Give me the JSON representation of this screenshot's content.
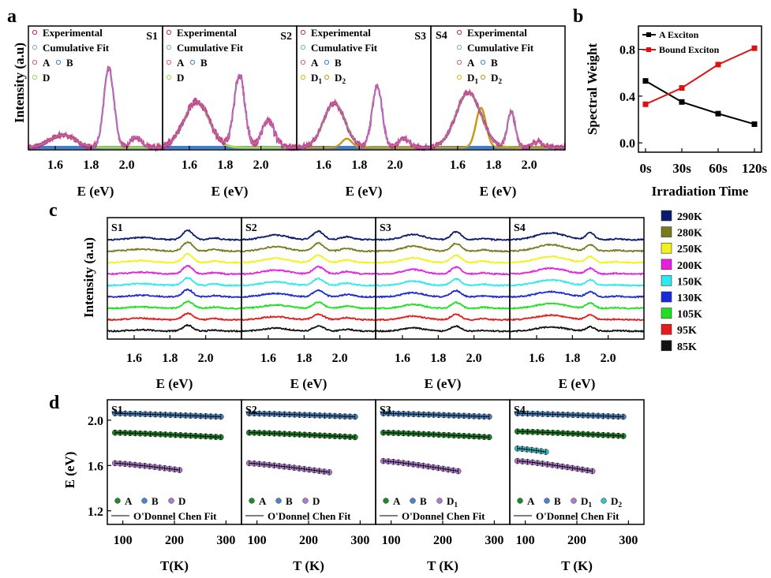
{
  "panel_labels": {
    "a": "a",
    "b": "b",
    "c": "c",
    "d": "d"
  },
  "shared": {
    "intensity_label": "Intensity (a.u)",
    "energy_label": "E (eV)",
    "temperature_label": "T(K)",
    "temperature_label_alt": "T (K)",
    "energy_ticks": [
      "1.6",
      "1.8",
      "2.0"
    ],
    "energy_values": [
      1.6,
      1.8,
      2.0
    ],
    "samples": [
      "S1",
      "S2",
      "S3",
      "S4"
    ]
  },
  "colors": {
    "experimental": "#c8266e",
    "fit": "#9b7fd4",
    "peak_a": "#e8587a",
    "peak_b": "#3a7fd6",
    "peak_d": "#a6d64a",
    "peak_d2": "#c89a1a",
    "a_exciton": "#000000",
    "bound_exciton": "#e01010",
    "green_marker": "#1f8a2a",
    "blue_marker": "#4a86c8",
    "purple_marker": "#b07ad0",
    "cyan_marker": "#3cc0c8"
  },
  "panel_a": {
    "xlim": [
      1.45,
      2.2
    ],
    "panels": [
      {
        "sample": "S1",
        "legend": [
          {
            "label": "Experimental",
            "color": "#c8266e"
          },
          {
            "label": "Cumulative Fit",
            "color": "#7fa8e0"
          },
          {
            "label": "A",
            "color": "#e8587a"
          },
          {
            "label": "B",
            "color": "#3a7fd6"
          },
          {
            "label": "D",
            "color": "#a6d64a"
          }
        ],
        "peaks": [
          {
            "c": 1.64,
            "w": 0.07,
            "h": 0.14
          },
          {
            "c": 1.9,
            "w": 0.028,
            "h": 0.9
          },
          {
            "c": 2.05,
            "w": 0.03,
            "h": 0.12
          }
        ]
      },
      {
        "sample": "S2",
        "legend": [
          {
            "label": "Experimental",
            "color": "#c8266e"
          },
          {
            "label": "Cumulative Fit",
            "color": "#7fa8e0"
          },
          {
            "label": "A",
            "color": "#e8587a"
          },
          {
            "label": "B",
            "color": "#3a7fd6"
          },
          {
            "label": "D",
            "color": "#a6d64a"
          }
        ],
        "peaks": [
          {
            "c": 1.64,
            "w": 0.07,
            "h": 0.52
          },
          {
            "c": 1.88,
            "w": 0.03,
            "h": 0.82
          },
          {
            "c": 2.04,
            "w": 0.035,
            "h": 0.3
          }
        ]
      },
      {
        "sample": "S3",
        "legend": [
          {
            "label": "Experimental",
            "color": "#c8266e"
          },
          {
            "label": "Cumulative Fit",
            "color": "#7fa8e0"
          },
          {
            "label": "A",
            "color": "#e8587a"
          },
          {
            "label": "B",
            "color": "#3a7fd6"
          },
          {
            "label": "D1",
            "color": "#e0c000"
          },
          {
            "label": "D2",
            "color": "#c89a1a"
          }
        ],
        "peaks": [
          {
            "c": 1.66,
            "w": 0.06,
            "h": 0.5
          },
          {
            "c": 1.9,
            "w": 0.028,
            "h": 0.7
          },
          {
            "c": 2.05,
            "w": 0.03,
            "h": 0.1
          }
        ]
      },
      {
        "sample": "S4",
        "legend": [
          {
            "label": "Experimental",
            "color": "#c8266e"
          },
          {
            "label": "Cumulative Fit",
            "color": "#7fa8e0"
          },
          {
            "label": "A",
            "color": "#e8587a"
          },
          {
            "label": "B",
            "color": "#3a7fd6"
          },
          {
            "label": "D1",
            "color": "#e0c000"
          },
          {
            "label": "D2",
            "color": "#c89a1a"
          }
        ],
        "peaks": [
          {
            "c": 1.66,
            "w": 0.07,
            "h": 0.62
          },
          {
            "c": 1.9,
            "w": 0.022,
            "h": 0.4
          },
          {
            "c": 2.05,
            "w": 0.03,
            "h": 0.06
          }
        ]
      }
    ]
  },
  "chart_data": {
    "type": "line",
    "title": "",
    "xlabel": "Irradiation Time",
    "ylabel": "Spectral Weight",
    "categories": [
      "0s",
      "30s",
      "60s",
      "120s"
    ],
    "series": [
      {
        "name": "A Exciton",
        "color": "#000000",
        "values": [
          0.53,
          0.35,
          0.25,
          0.16
        ]
      },
      {
        "name": "Bound Exciton",
        "color": "#e01010",
        "values": [
          0.33,
          0.47,
          0.67,
          0.81
        ]
      }
    ],
    "ylim": [
      -0.08,
      1.0
    ],
    "yticks": [
      "0.0",
      "0.4",
      "0.8"
    ],
    "ytick_values": [
      0.0,
      0.4,
      0.8
    ]
  },
  "panel_c": {
    "temperatures": [
      {
        "label": "290K",
        "color": "#0a1a6e"
      },
      {
        "label": "280K",
        "color": "#7a7a1a"
      },
      {
        "label": "250K",
        "color": "#f2f21a"
      },
      {
        "label": "200K",
        "color": "#e81ee0"
      },
      {
        "label": "150K",
        "color": "#2ee8ee"
      },
      {
        "label": "130K",
        "color": "#1a2ad6"
      },
      {
        "label": "105K",
        "color": "#1ee01e"
      },
      {
        "label": "95K",
        "color": "#e81a1a"
      },
      {
        "label": "85K",
        "color": "#111111"
      }
    ]
  },
  "panel_d": {
    "yticks": [
      "1.2",
      "1.6",
      "2.0"
    ],
    "ytick_values": [
      1.2,
      1.6,
      2.0
    ],
    "xticks": [
      "100",
      "200",
      "300"
    ],
    "xtick_values": [
      100,
      200,
      300
    ],
    "ylim": [
      1.08,
      2.18
    ],
    "xlim": [
      70,
      330
    ],
    "fit_label": "O'Donnel Chen Fit",
    "panels": [
      {
        "sample": "S1",
        "legend": [
          {
            "label": "A",
            "color": "#1f8a2a"
          },
          {
            "label": "B",
            "color": "#4a86c8"
          },
          {
            "label": "D",
            "color": "#b07ad0"
          }
        ],
        "series": [
          {
            "name": "B",
            "color": "#4a86c8",
            "e0": 2.06,
            "e1": 2.03,
            "t0": 85,
            "t1": 290
          },
          {
            "name": "A",
            "color": "#1f8a2a",
            "e0": 1.89,
            "e1": 1.85,
            "t0": 85,
            "t1": 290
          },
          {
            "name": "D",
            "color": "#b07ad0",
            "e0": 1.62,
            "e1": 1.56,
            "t0": 85,
            "t1": 210
          }
        ]
      },
      {
        "sample": "S2",
        "legend": [
          {
            "label": "A",
            "color": "#1f8a2a"
          },
          {
            "label": "B",
            "color": "#4a86c8"
          },
          {
            "label": "D",
            "color": "#b07ad0"
          }
        ],
        "series": [
          {
            "name": "B",
            "color": "#4a86c8",
            "e0": 2.06,
            "e1": 2.03,
            "t0": 85,
            "t1": 290
          },
          {
            "name": "A",
            "color": "#1f8a2a",
            "e0": 1.89,
            "e1": 1.85,
            "t0": 85,
            "t1": 290
          },
          {
            "name": "D",
            "color": "#b07ad0",
            "e0": 1.62,
            "e1": 1.54,
            "t0": 85,
            "t1": 240
          }
        ]
      },
      {
        "sample": "S3",
        "legend": [
          {
            "label": "A",
            "color": "#1f8a2a"
          },
          {
            "label": "B",
            "color": "#4a86c8"
          },
          {
            "label": "D1",
            "color": "#b07ad0"
          }
        ],
        "series": [
          {
            "name": "B",
            "color": "#4a86c8",
            "e0": 2.06,
            "e1": 2.03,
            "t0": 85,
            "t1": 290
          },
          {
            "name": "A",
            "color": "#1f8a2a",
            "e0": 1.89,
            "e1": 1.85,
            "t0": 85,
            "t1": 290
          },
          {
            "name": "D1",
            "color": "#b07ad0",
            "e0": 1.64,
            "e1": 1.55,
            "t0": 85,
            "t1": 230
          }
        ]
      },
      {
        "sample": "S4",
        "legend": [
          {
            "label": "A",
            "color": "#1f8a2a"
          },
          {
            "label": "B",
            "color": "#4a86c8"
          },
          {
            "label": "D1",
            "color": "#b07ad0"
          },
          {
            "label": "D2",
            "color": "#3cc0c8"
          }
        ],
        "series": [
          {
            "name": "B",
            "color": "#4a86c8",
            "e0": 2.06,
            "e1": 2.03,
            "t0": 85,
            "t1": 290
          },
          {
            "name": "A",
            "color": "#1f8a2a",
            "e0": 1.9,
            "e1": 1.86,
            "t0": 85,
            "t1": 290
          },
          {
            "name": "D2",
            "color": "#3cc0c8",
            "e0": 1.75,
            "e1": 1.72,
            "t0": 85,
            "t1": 140
          },
          {
            "name": "D1",
            "color": "#b07ad0",
            "e0": 1.64,
            "e1": 1.55,
            "t0": 85,
            "t1": 230
          }
        ]
      }
    ]
  }
}
